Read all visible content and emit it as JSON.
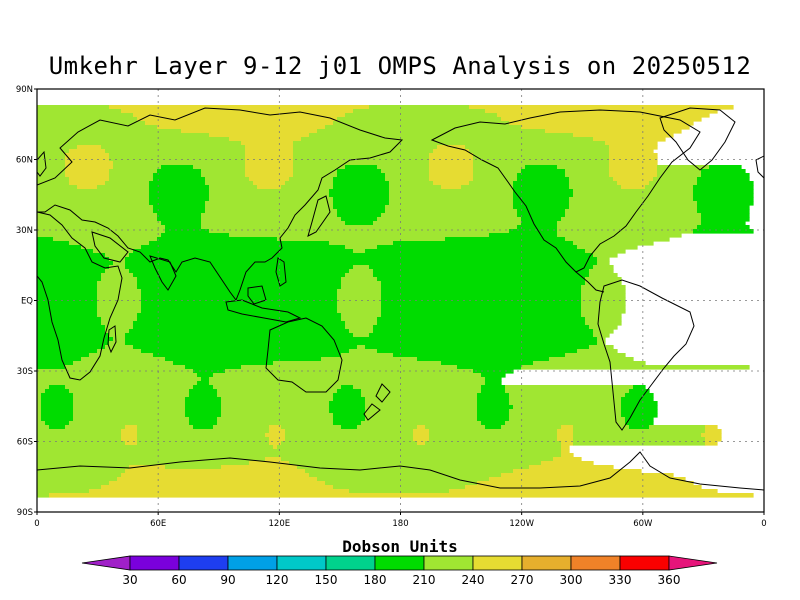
{
  "title": "Umkehr Layer 9-12 j01 OMPS Analysis on 20250512",
  "map": {
    "lat_labels": [
      "90N",
      "60N",
      "30N",
      "EQ",
      "30S",
      "60S",
      "90S"
    ],
    "lon_labels": [
      "0",
      "60E",
      "120E",
      "180",
      "120W",
      "60W",
      "0"
    ],
    "lat_values": [
      90,
      60,
      30,
      0,
      -30,
      -60,
      -90
    ],
    "lon_values": [
      0,
      60,
      120,
      180,
      240,
      300,
      360
    ]
  },
  "colorbar": {
    "title": "Dobson Units",
    "levels": [
      "30",
      "60",
      "90",
      "120",
      "150",
      "180",
      "210",
      "240",
      "270",
      "300",
      "330",
      "360"
    ],
    "colors": [
      "#a020c8",
      "#7a00dc",
      "#1e3ef0",
      "#00a0e6",
      "#00c8c8",
      "#00d28c",
      "#00dc00",
      "#a0e632",
      "#e6dc32",
      "#e6af2d",
      "#f08228",
      "#fa0000",
      "#e6147a"
    ]
  }
}
